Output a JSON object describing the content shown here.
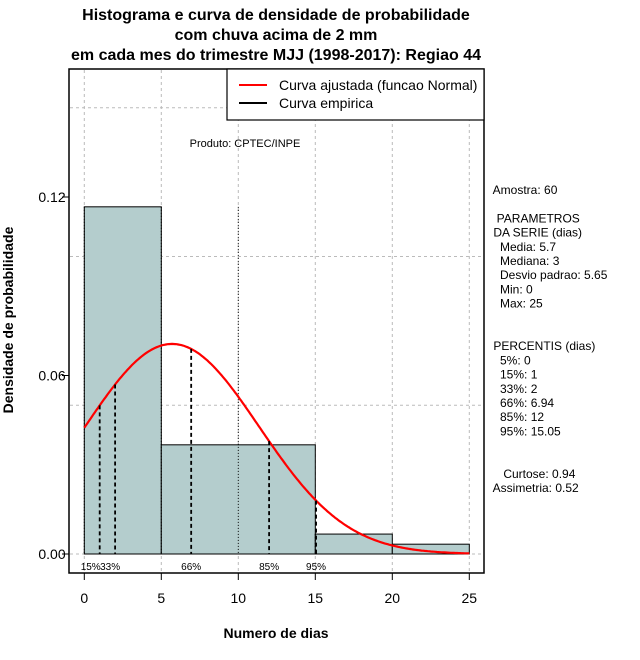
{
  "chart_data": {
    "type": "bar",
    "title": [
      "Histograma e curva de densidade de probabilidade",
      "com chuva acima de 2 mm",
      "em cada mes do trimestre MJJ (1998-2017): Regiao 44"
    ],
    "xlabel": "Numero de dias",
    "ylabel": "Densidade de probabilidade",
    "xlim": [
      0,
      25
    ],
    "ylim": [
      0,
      0.15
    ],
    "x_ticks": [
      "0",
      "5",
      "10",
      "15",
      "20",
      "25"
    ],
    "x_tick_values": [
      0,
      5,
      10,
      15,
      20,
      25
    ],
    "y_ticks": [
      "0.00",
      "0.06",
      "0.12"
    ],
    "y_tick_values": [
      0,
      0.06,
      0.12
    ],
    "grid": true,
    "bins": [
      [
        0,
        5
      ],
      [
        5,
        15
      ],
      [
        15,
        20
      ],
      [
        20,
        25
      ]
    ],
    "values": [
      0.1167,
      0.0367,
      0.0067,
      0.0033
    ],
    "bar_color": "#b4cdcd",
    "normal_fit": {
      "mean": 5.7,
      "sd": 5.65,
      "color": "#ff0000"
    },
    "percentile_lines": [
      {
        "label": "15%",
        "x": 1
      },
      {
        "label": "33%",
        "x": 2
      },
      {
        "label": "66%",
        "x": 6.94
      },
      {
        "label": "85%",
        "x": 12
      },
      {
        "label": "95%",
        "x": 15.05
      }
    ],
    "legend": {
      "placement": "top-right",
      "entries": [
        {
          "label": "Curva ajustada (funcao Normal)",
          "color": "#ff0000"
        },
        {
          "label": "Curva empirica",
          "color": "#000000"
        }
      ]
    },
    "annotation": "Produto: CPTEC/INPE"
  },
  "side_panel": {
    "lines": [
      " Amostra: 60",
      "",
      "  PARAMETROS",
      " DA SERIE (dias)",
      "   Media: 5.7",
      "   Mediana: 3",
      "   Desvio padrao: 5.65",
      "   Min: 0",
      "   Max: 25",
      "",
      "",
      " PERCENTIS (dias)",
      "   5%: 0",
      "   15%: 1",
      "   33%: 2",
      "   66%: 6.94",
      "   85%: 12",
      "   95%: 15.05",
      "",
      "",
      "    Curtose: 0.94",
      " Assimetria: 0.52"
    ]
  }
}
